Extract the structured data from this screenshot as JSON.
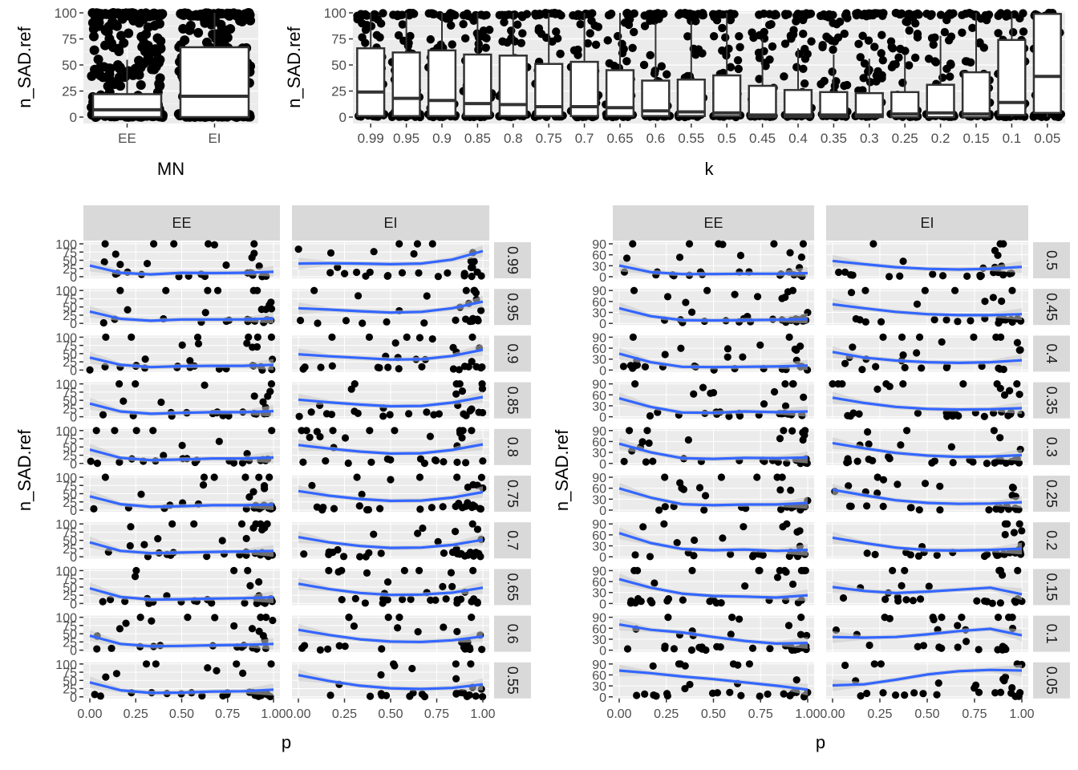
{
  "colors": {
    "panel_bg": "#ebebeb",
    "grid": "#ffffff",
    "strip_bg": "#d9d9d9",
    "point": "#000000",
    "smooth": "#3366ff",
    "ribbon": "#c8c8c8",
    "box_fill": "#ffffff",
    "box_line": "#333333"
  },
  "chart_data": [
    {
      "id": "box_mn",
      "type": "box",
      "xlabel": "MN",
      "ylabel": "n_SAD.ref",
      "ylim": [
        0,
        100
      ],
      "yticks": [
        0,
        25,
        50,
        75,
        100
      ],
      "categories": [
        "EE",
        "EI"
      ],
      "boxes": [
        {
          "q1": 0,
          "median": 7,
          "q3": 22,
          "whisker_low": 0,
          "whisker_high": 55
        },
        {
          "q1": 0,
          "median": 20,
          "q3": 67,
          "whisker_low": 0,
          "whisker_high": 100
        }
      ]
    },
    {
      "id": "box_k",
      "type": "box",
      "xlabel": "k",
      "ylabel": "n_SAD.ref",
      "ylim": [
        0,
        100
      ],
      "yticks": [
        0,
        25,
        50,
        75,
        100
      ],
      "categories": [
        "0.99",
        "0.95",
        "0.9",
        "0.85",
        "0.8",
        "0.75",
        "0.7",
        "0.65",
        "0.6",
        "0.55",
        "0.5",
        "0.45",
        "0.4",
        "0.35",
        "0.3",
        "0.25",
        "0.2",
        "0.15",
        "0.1",
        "0.05"
      ],
      "boxes": [
        {
          "q1": 1,
          "median": 24,
          "q3": 66,
          "whisker_low": 0,
          "whisker_high": 100
        },
        {
          "q1": 1,
          "median": 18,
          "q3": 62,
          "whisker_low": 0,
          "whisker_high": 100
        },
        {
          "q1": 1,
          "median": 16,
          "q3": 64,
          "whisker_low": 0,
          "whisker_high": 100
        },
        {
          "q1": 1,
          "median": 13,
          "q3": 60,
          "whisker_low": 0,
          "whisker_high": 100
        },
        {
          "q1": 1,
          "median": 12,
          "q3": 59,
          "whisker_low": 0,
          "whisker_high": 100
        },
        {
          "q1": 1,
          "median": 10,
          "q3": 51,
          "whisker_low": 0,
          "whisker_high": 100
        },
        {
          "q1": 1,
          "median": 10,
          "q3": 53,
          "whisker_low": 0,
          "whisker_high": 100
        },
        {
          "q1": 1,
          "median": 9,
          "q3": 45,
          "whisker_low": 0,
          "whisker_high": 100
        },
        {
          "q1": 1,
          "median": 6,
          "q3": 35,
          "whisker_low": 0,
          "whisker_high": 90
        },
        {
          "q1": 1,
          "median": 5,
          "q3": 36,
          "whisker_low": 0,
          "whisker_high": 92
        },
        {
          "q1": 1,
          "median": 4,
          "q3": 40,
          "whisker_low": 0,
          "whisker_high": 100
        },
        {
          "q1": 0,
          "median": 2,
          "q3": 30,
          "whisker_low": 0,
          "whisker_high": 75
        },
        {
          "q1": 0,
          "median": 2,
          "q3": 26,
          "whisker_low": 0,
          "whisker_high": 66
        },
        {
          "q1": 0,
          "median": 2,
          "q3": 24,
          "whisker_low": 0,
          "whisker_high": 60
        },
        {
          "q1": 0,
          "median": 2,
          "q3": 23,
          "whisker_low": 0,
          "whisker_high": 56
        },
        {
          "q1": 0,
          "median": 3,
          "q3": 24,
          "whisker_low": 0,
          "whisker_high": 60
        },
        {
          "q1": 0,
          "median": 4,
          "q3": 31,
          "whisker_low": 0,
          "whisker_high": 78
        },
        {
          "q1": 0,
          "median": 3,
          "q3": 43,
          "whisker_low": 0,
          "whisker_high": 100
        },
        {
          "q1": 2,
          "median": 14,
          "q3": 74,
          "whisker_low": 0,
          "whisker_high": 100
        },
        {
          "q1": 4,
          "median": 39,
          "q3": 99,
          "whisker_low": 0,
          "whisker_high": 100
        }
      ]
    },
    {
      "id": "facet_left",
      "type": "scatter",
      "xlabel": "p",
      "ylabel": "n_SAD.ref",
      "xlim": [
        0,
        1
      ],
      "ylim": [
        0,
        100
      ],
      "xticks": [
        "0.00",
        "0.25",
        "0.50",
        "0.75",
        "1.00"
      ],
      "ytick_labels": [
        "0",
        "25",
        "50",
        "75",
        "100"
      ],
      "columns": [
        "EE",
        "EI"
      ],
      "rows": [
        "0.99",
        "0.95",
        "0.9",
        "0.85",
        "0.8",
        "0.75",
        "0.7",
        "0.65",
        "0.6",
        "0.55"
      ],
      "smooth": [
        [
          [
            34,
            12,
            7,
            12,
            11,
            12,
            15
          ],
          [
            40,
            41,
            40,
            38,
            40,
            52,
            78
          ]
        ],
        [
          [
            36,
            14,
            8,
            12,
            12,
            12,
            15
          ],
          [
            46,
            42,
            37,
            33,
            35,
            46,
            66
          ]
        ],
        [
          [
            38,
            16,
            9,
            12,
            13,
            13,
            16
          ],
          [
            48,
            42,
            37,
            32,
            33,
            43,
            62
          ]
        ],
        [
          [
            40,
            16,
            9,
            12,
            14,
            14,
            17
          ],
          [
            52,
            44,
            37,
            32,
            33,
            43,
            60
          ]
        ],
        [
          [
            42,
            17,
            10,
            12,
            15,
            15,
            18
          ],
          [
            56,
            45,
            36,
            30,
            31,
            41,
            58
          ]
        ],
        [
          [
            42,
            18,
            10,
            12,
            15,
            15,
            17
          ],
          [
            58,
            44,
            34,
            28,
            29,
            38,
            55
          ]
        ],
        [
          [
            44,
            18,
            11,
            13,
            15,
            16,
            18
          ],
          [
            60,
            44,
            33,
            27,
            28,
            36,
            52
          ]
        ],
        [
          [
            46,
            20,
            12,
            13,
            15,
            16,
            19
          ],
          [
            60,
            44,
            32,
            26,
            27,
            33,
            48
          ]
        ],
        [
          [
            44,
            19,
            12,
            13,
            15,
            16,
            19
          ],
          [
            62,
            46,
            33,
            26,
            25,
            30,
            42
          ]
        ],
        [
          [
            44,
            20,
            12,
            13,
            16,
            17,
            22
          ],
          [
            66,
            48,
            34,
            26,
            24,
            27,
            38
          ]
        ]
      ]
    },
    {
      "id": "facet_right",
      "type": "scatter",
      "xlabel": "p",
      "ylabel": "n_SAD.ref",
      "xlim": [
        0,
        1
      ],
      "ylim": [
        0,
        100
      ],
      "xticks": [
        "0.00",
        "0.25",
        "0.50",
        "0.75",
        "1.00"
      ],
      "ytick_labels": [
        "0",
        "30",
        "60",
        "90"
      ],
      "columns": [
        "EE",
        "EI"
      ],
      "rows": [
        "0.5",
        "0.45",
        "0.4",
        "0.35",
        "0.3",
        "0.25",
        "0.2",
        "0.15",
        "0.1",
        "0.05"
      ],
      "smooth": [
        [
          [
            34,
            14,
            8,
            8,
            9,
            9,
            11
          ],
          [
            48,
            38,
            29,
            24,
            22,
            24,
            30
          ]
        ],
        [
          [
            46,
            22,
            10,
            9,
            10,
            11,
            13
          ],
          [
            58,
            46,
            35,
            28,
            25,
            25,
            28
          ]
        ],
        [
          [
            50,
            24,
            10,
            9,
            10,
            11,
            14
          ],
          [
            55,
            38,
            29,
            24,
            22,
            24,
            30
          ]
        ],
        [
          [
            56,
            30,
            13,
            12,
            16,
            14,
            16
          ],
          [
            58,
            42,
            30,
            24,
            22,
            23,
            26
          ]
        ],
        [
          [
            60,
            34,
            16,
            14,
            17,
            16,
            18
          ],
          [
            62,
            46,
            32,
            24,
            20,
            21,
            25
          ]
        ],
        [
          [
            66,
            38,
            18,
            15,
            17,
            17,
            22
          ],
          [
            62,
            45,
            30,
            22,
            19,
            20,
            24
          ]
        ],
        [
          [
            72,
            42,
            24,
            20,
            22,
            18,
            21
          ],
          [
            58,
            42,
            28,
            20,
            19,
            21,
            25
          ]
        ],
        [
          [
            74,
            48,
            30,
            23,
            21,
            18,
            25
          ],
          [
            50,
            38,
            32,
            36,
            42,
            48,
            28
          ]
        ],
        [
          [
            78,
            62,
            54,
            40,
            28,
            20,
            22
          ],
          [
            40,
            38,
            40,
            48,
            58,
            65,
            45
          ]
        ],
        [
          [
            80,
            72,
            62,
            54,
            44,
            34,
            22
          ],
          [
            35,
            38,
            52,
            68,
            78,
            82,
            80
          ]
        ]
      ]
    }
  ]
}
